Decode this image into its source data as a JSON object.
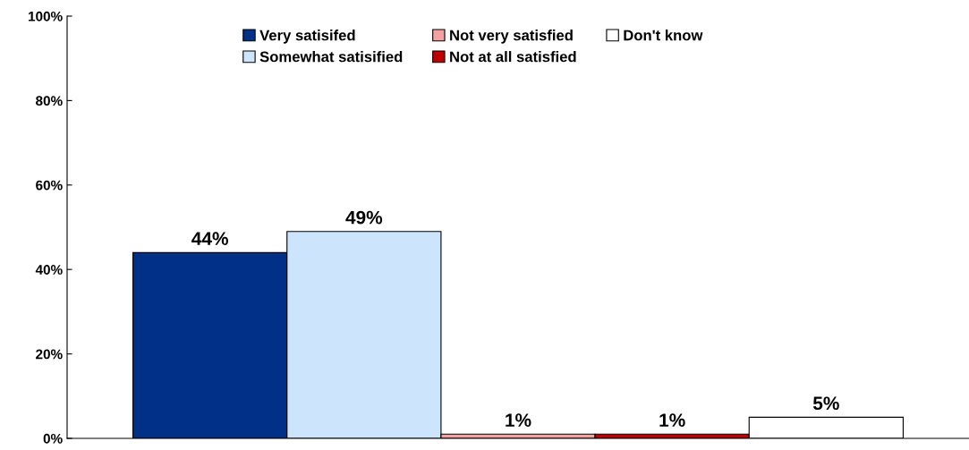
{
  "chart_data": {
    "type": "bar",
    "categories": [
      null
    ],
    "series": [
      {
        "name": "Very satisifed",
        "color": "#003087",
        "values": [
          44
        ],
        "value_labels": [
          "44%"
        ]
      },
      {
        "name": "Somewhat satisified",
        "color": "#cce4fc",
        "values": [
          49
        ],
        "value_labels": [
          "49%"
        ]
      },
      {
        "name": "Not very satisfied",
        "color": "#f4a1a1",
        "values": [
          1
        ],
        "value_labels": [
          "1%"
        ]
      },
      {
        "name": "Not at all satisfied",
        "color": "#c00000",
        "values": [
          1
        ],
        "value_labels": [
          "1%"
        ]
      },
      {
        "name": "Don't know",
        "color": "#ffffff",
        "values": [
          5
        ],
        "value_labels": [
          "5%"
        ]
      }
    ],
    "ylim": [
      0,
      100
    ],
    "yticks": [
      {
        "value": 0,
        "label": "0%"
      },
      {
        "value": 20,
        "label": "20%"
      },
      {
        "value": 40,
        "label": "40%"
      },
      {
        "value": 60,
        "label": "60%"
      },
      {
        "value": 80,
        "label": "80%"
      },
      {
        "value": 100,
        "label": "100%"
      }
    ],
    "tick_labels": "y",
    "legend": "top",
    "grid": false
  }
}
